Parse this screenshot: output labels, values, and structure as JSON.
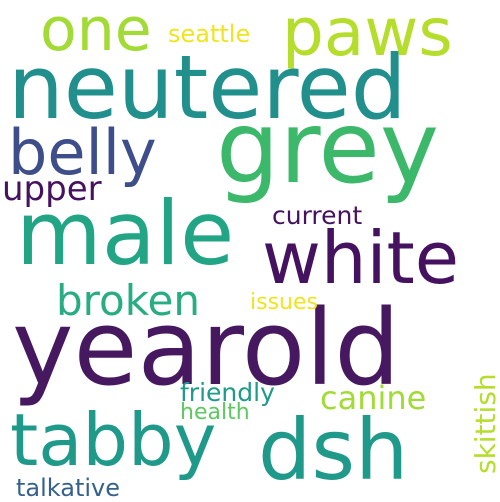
{
  "words": {
    "yearold": {
      "text": "yearold",
      "color": "#46185f"
    },
    "neutered": {
      "text": "neutered",
      "color": "#21908d"
    },
    "grey": {
      "text": "grey",
      "color": "#3bb86a"
    },
    "male": {
      "text": "male",
      "color": "#21a585"
    },
    "white": {
      "text": "white",
      "color": "#45125f"
    },
    "tabby": {
      "text": "tabby",
      "color": "#1f9a8a"
    },
    "dsh": {
      "text": "dsh",
      "color": "#1f9a8a"
    },
    "paws": {
      "text": "paws",
      "color": "#b5dd2b"
    },
    "one": {
      "text": "one",
      "color": "#a2db35"
    },
    "belly": {
      "text": "belly",
      "color": "#3e4e8a"
    },
    "broken": {
      "text": "broken",
      "color": "#27ad81"
    },
    "upper": {
      "text": "upper",
      "color": "#45125f"
    },
    "canine": {
      "text": "canine",
      "color": "#a2db35"
    },
    "current": {
      "text": "current",
      "color": "#45125f"
    },
    "friendly": {
      "text": "friendly",
      "color": "#1f9a8a"
    },
    "issues": {
      "text": "issues",
      "color": "#f0e41f"
    },
    "health": {
      "text": "health",
      "color": "#5ec962"
    },
    "skittish": {
      "text": "skittish",
      "color": "#b5dd2b"
    },
    "seattle": {
      "text": "seattle",
      "color": "#f0e41f"
    },
    "talkative": {
      "text": "talkative",
      "color": "#35618d"
    }
  }
}
